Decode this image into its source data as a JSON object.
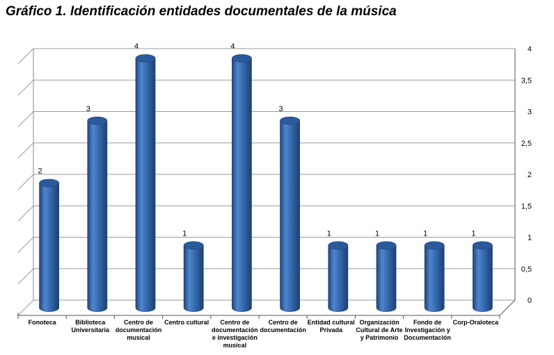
{
  "title": "Gráfico 1.  Identificación entidades documentales de la música",
  "chart_data": {
    "type": "bar",
    "style": "3d-cylinder",
    "categories": [
      "Fonoteca",
      "Biblioteca\nUniversitaria",
      "Centro de\ndocumentación\nmusical",
      "Centro cultural",
      "Centro de\ndocumentación\ne investigación\nmusical",
      "Centro de\ndocumentación",
      "Entidad cultural\nPrivada",
      "Organización\nCultural de Arte\ny Patrimonio",
      "Fondo de\nInvestigación y\nDocumentación",
      "Corp-Oraloteca"
    ],
    "values": [
      2,
      3,
      4,
      1,
      4,
      3,
      1,
      1,
      1,
      1
    ],
    "data_labels": [
      "2",
      "3",
      "4",
      "1",
      "4",
      "3",
      "1",
      "1",
      "1",
      "1"
    ],
    "ylim": [
      0,
      4
    ],
    "yticks": [
      "0",
      "0,5",
      "1",
      "1,5",
      "2",
      "2,5",
      "3",
      "3,5",
      "4"
    ],
    "ytick_values": [
      0,
      0.5,
      1,
      1.5,
      2,
      2.5,
      3,
      3.5,
      4
    ],
    "axis_side": "right",
    "grid": true,
    "bar_color": "#3a6cb3",
    "bar_edge_color": "#24497f",
    "bar_top_color": "#2b5a9a",
    "grid_color": "#9a9a9a"
  }
}
